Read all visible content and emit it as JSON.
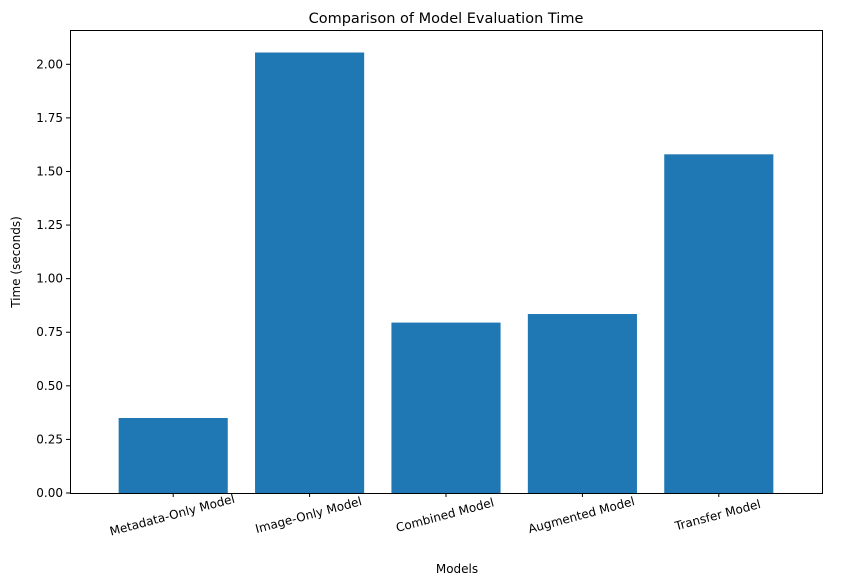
{
  "chart_data": {
    "type": "bar",
    "title": "Comparison of Model Evaluation Time",
    "xlabel": "Models",
    "ylabel": "Time (seconds)",
    "categories": [
      "Metadata-Only Model",
      "Image-Only Model",
      "Combined Model",
      "Augmented Model",
      "Transfer Model"
    ],
    "values": [
      0.35,
      2.055,
      0.795,
      0.835,
      1.58
    ],
    "ylim": [
      0,
      2.16
    ],
    "yticks": [
      "0.00",
      "0.25",
      "0.50",
      "0.75",
      "1.00",
      "1.25",
      "1.50",
      "1.75",
      "2.00"
    ],
    "bar_color": "#1f77b4",
    "grid": false,
    "legend": false,
    "x_tick_rotation_deg": -15
  }
}
